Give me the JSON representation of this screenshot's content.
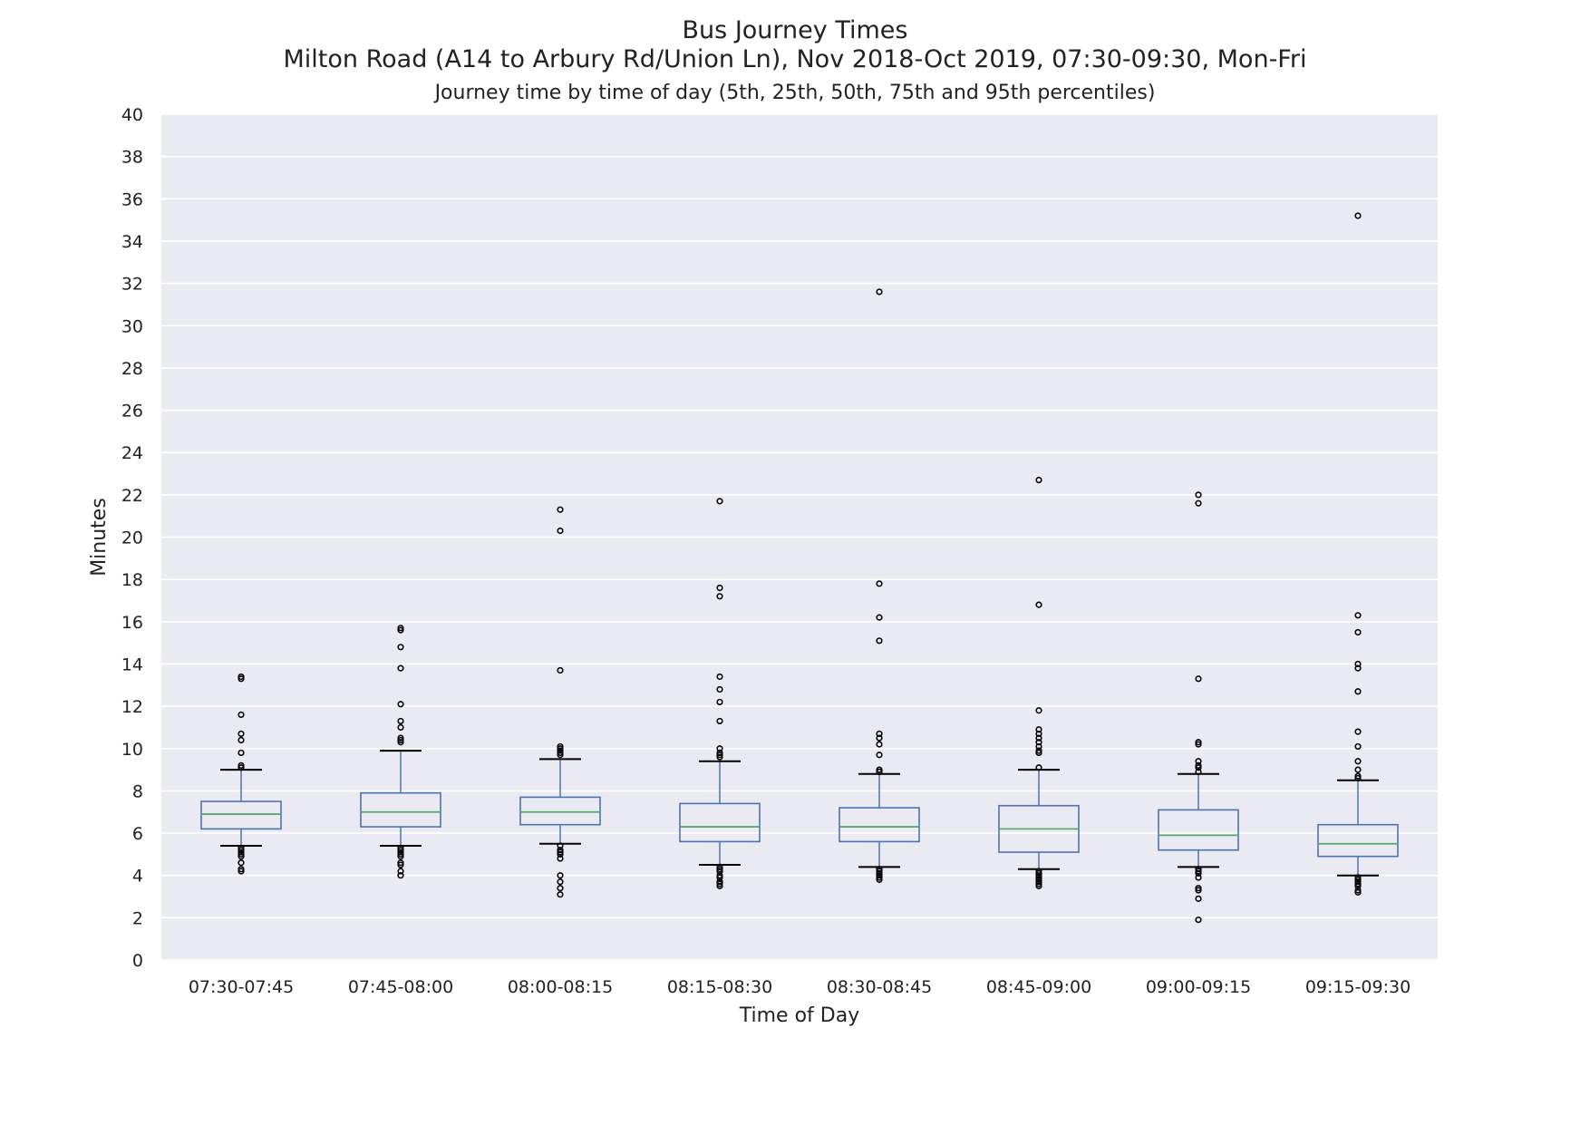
{
  "chart_data": {
    "type": "box",
    "title": "Bus Journey Times",
    "subtitle": "Milton Road (A14 to Arbury Rd/Union Ln), Nov 2018-Oct 2019, 07:30-09:30, Mon-Fri",
    "caption": "Journey time by time of day (5th, 25th, 50th, 75th and 95th percentiles)",
    "xlabel": "Time of Day",
    "ylabel": "Minutes",
    "ylim": [
      0,
      40
    ],
    "yticks": [
      0,
      2,
      4,
      6,
      8,
      10,
      12,
      14,
      16,
      18,
      20,
      22,
      24,
      26,
      28,
      30,
      32,
      34,
      36,
      38,
      40
    ],
    "grid": true,
    "colors": {
      "plot_bg": "#eaeaf2",
      "grid": "#ffffff",
      "box": "#4c72b0",
      "median": "#55a868",
      "whisker_cap": "#000000",
      "outlier": "#000000"
    },
    "categories": [
      "07:30-07:45",
      "07:45-08:00",
      "08:00-08:15",
      "08:15-08:30",
      "08:30-08:45",
      "08:45-09:00",
      "09:00-09:15",
      "09:15-09:30"
    ],
    "boxes": [
      {
        "p5": 5.4,
        "q1": 6.2,
        "median": 6.9,
        "q3": 7.5,
        "p95": 9.0,
        "outliers": [
          13.4,
          13.3,
          11.6,
          10.7,
          10.4,
          9.8,
          9.2,
          9.1,
          5.3,
          5.2,
          5.1,
          5.0,
          4.9,
          4.6,
          4.3,
          4.2
        ]
      },
      {
        "p5": 5.4,
        "q1": 6.3,
        "median": 7.0,
        "q3": 7.9,
        "p95": 9.9,
        "outliers": [
          15.7,
          15.6,
          14.8,
          13.8,
          12.1,
          11.3,
          11.0,
          10.5,
          10.4,
          10.3,
          5.3,
          5.2,
          5.1,
          5.0,
          4.9,
          4.6,
          4.5,
          4.2,
          4.0
        ]
      },
      {
        "p5": 5.5,
        "q1": 6.4,
        "median": 7.0,
        "q3": 7.7,
        "p95": 9.5,
        "outliers": [
          21.3,
          20.3,
          13.7,
          10.1,
          10.0,
          9.9,
          9.8,
          9.7,
          5.4,
          5.2,
          5.1,
          5.0,
          4.8,
          4.0,
          3.7,
          3.4,
          3.1
        ]
      },
      {
        "p5": 4.5,
        "q1": 5.6,
        "median": 6.3,
        "q3": 7.4,
        "p95": 9.4,
        "outliers": [
          21.7,
          17.6,
          17.2,
          13.4,
          12.8,
          12.2,
          11.3,
          10.0,
          9.8,
          9.7,
          9.6,
          4.4,
          4.3,
          4.2,
          4.0,
          3.9,
          3.7,
          3.6,
          3.5
        ]
      },
      {
        "p5": 4.4,
        "q1": 5.6,
        "median": 6.3,
        "q3": 7.2,
        "p95": 8.8,
        "outliers": [
          31.6,
          17.8,
          16.2,
          15.1,
          10.7,
          10.5,
          10.2,
          9.7,
          9.0,
          8.9,
          4.3,
          4.2,
          4.1,
          4.0,
          3.9,
          3.8
        ]
      },
      {
        "p5": 4.3,
        "q1": 5.1,
        "median": 6.2,
        "q3": 7.3,
        "p95": 9.0,
        "outliers": [
          22.7,
          16.8,
          11.8,
          10.9,
          10.7,
          10.5,
          10.3,
          10.1,
          9.9,
          9.8,
          9.1,
          4.2,
          4.1,
          4.0,
          3.9,
          3.8,
          3.7,
          3.6,
          3.5
        ]
      },
      {
        "p5": 4.4,
        "q1": 5.2,
        "median": 5.9,
        "q3": 7.1,
        "p95": 8.8,
        "outliers": [
          22.0,
          21.6,
          13.3,
          10.3,
          10.2,
          9.4,
          9.2,
          9.1,
          8.9,
          4.3,
          4.2,
          4.1,
          3.9,
          3.4,
          3.3,
          2.9,
          1.9
        ]
      },
      {
        "p5": 4.0,
        "q1": 4.9,
        "median": 5.5,
        "q3": 6.4,
        "p95": 8.5,
        "outliers": [
          35.2,
          16.3,
          15.5,
          14.0,
          13.8,
          12.7,
          10.8,
          10.1,
          9.4,
          9.0,
          8.7,
          8.6,
          3.9,
          3.8,
          3.7,
          3.6,
          3.5,
          3.3,
          3.2
        ]
      }
    ]
  }
}
